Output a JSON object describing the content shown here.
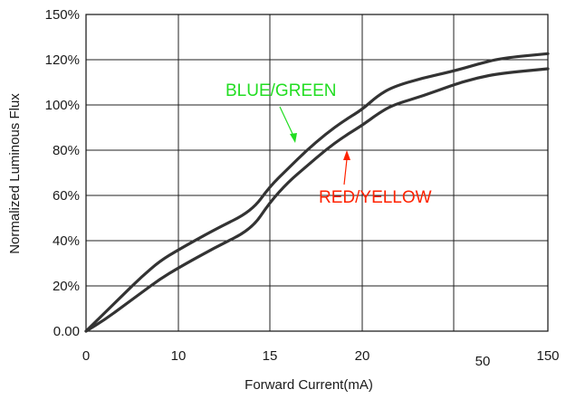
{
  "chart_data": {
    "type": "line",
    "title": "",
    "xlabel": "Forward Current(mA)",
    "ylabel": "Normalized Luminous Flux",
    "x_tick_labels": [
      "0",
      "10",
      "15",
      "20",
      "50",
      "150"
    ],
    "y_tick_labels": [
      "0.00",
      "20%",
      "40%",
      "60%",
      "80%",
      "100%",
      "120%",
      "150%"
    ],
    "ylim": [
      0,
      150
    ],
    "grid": true,
    "legend": "inline-annotations",
    "series": [
      {
        "name": "BLUE/GREEN",
        "color": "#22dd22",
        "line_color": "#333333",
        "points": [
          [
            0,
            0
          ],
          [
            2,
            8
          ],
          [
            4,
            16
          ],
          [
            6,
            24
          ],
          [
            8,
            31
          ],
          [
            10,
            36
          ],
          [
            12,
            45
          ],
          [
            14,
            53
          ],
          [
            15,
            64
          ],
          [
            16,
            72
          ],
          [
            17,
            80
          ],
          [
            18,
            87
          ],
          [
            19,
            93
          ],
          [
            20,
            98
          ],
          [
            25,
            104
          ],
          [
            30,
            108
          ],
          [
            40,
            112
          ],
          [
            50,
            115
          ],
          [
            75,
            118
          ],
          [
            100,
            121
          ],
          [
            150,
            124
          ]
        ]
      },
      {
        "name": "RED/YELLOW",
        "color": "#ff2200",
        "line_color": "#333333",
        "points": [
          [
            0,
            0
          ],
          [
            2,
            5
          ],
          [
            4,
            11
          ],
          [
            6,
            17
          ],
          [
            8,
            23
          ],
          [
            10,
            28
          ],
          [
            12,
            37
          ],
          [
            14,
            45
          ],
          [
            15,
            57
          ],
          [
            16,
            66
          ],
          [
            17,
            73
          ],
          [
            18,
            80
          ],
          [
            19,
            86
          ],
          [
            20,
            91
          ],
          [
            25,
            96
          ],
          [
            30,
            100
          ],
          [
            40,
            104
          ],
          [
            50,
            109
          ],
          [
            75,
            112
          ],
          [
            100,
            114
          ],
          [
            150,
            116
          ]
        ]
      }
    ]
  }
}
